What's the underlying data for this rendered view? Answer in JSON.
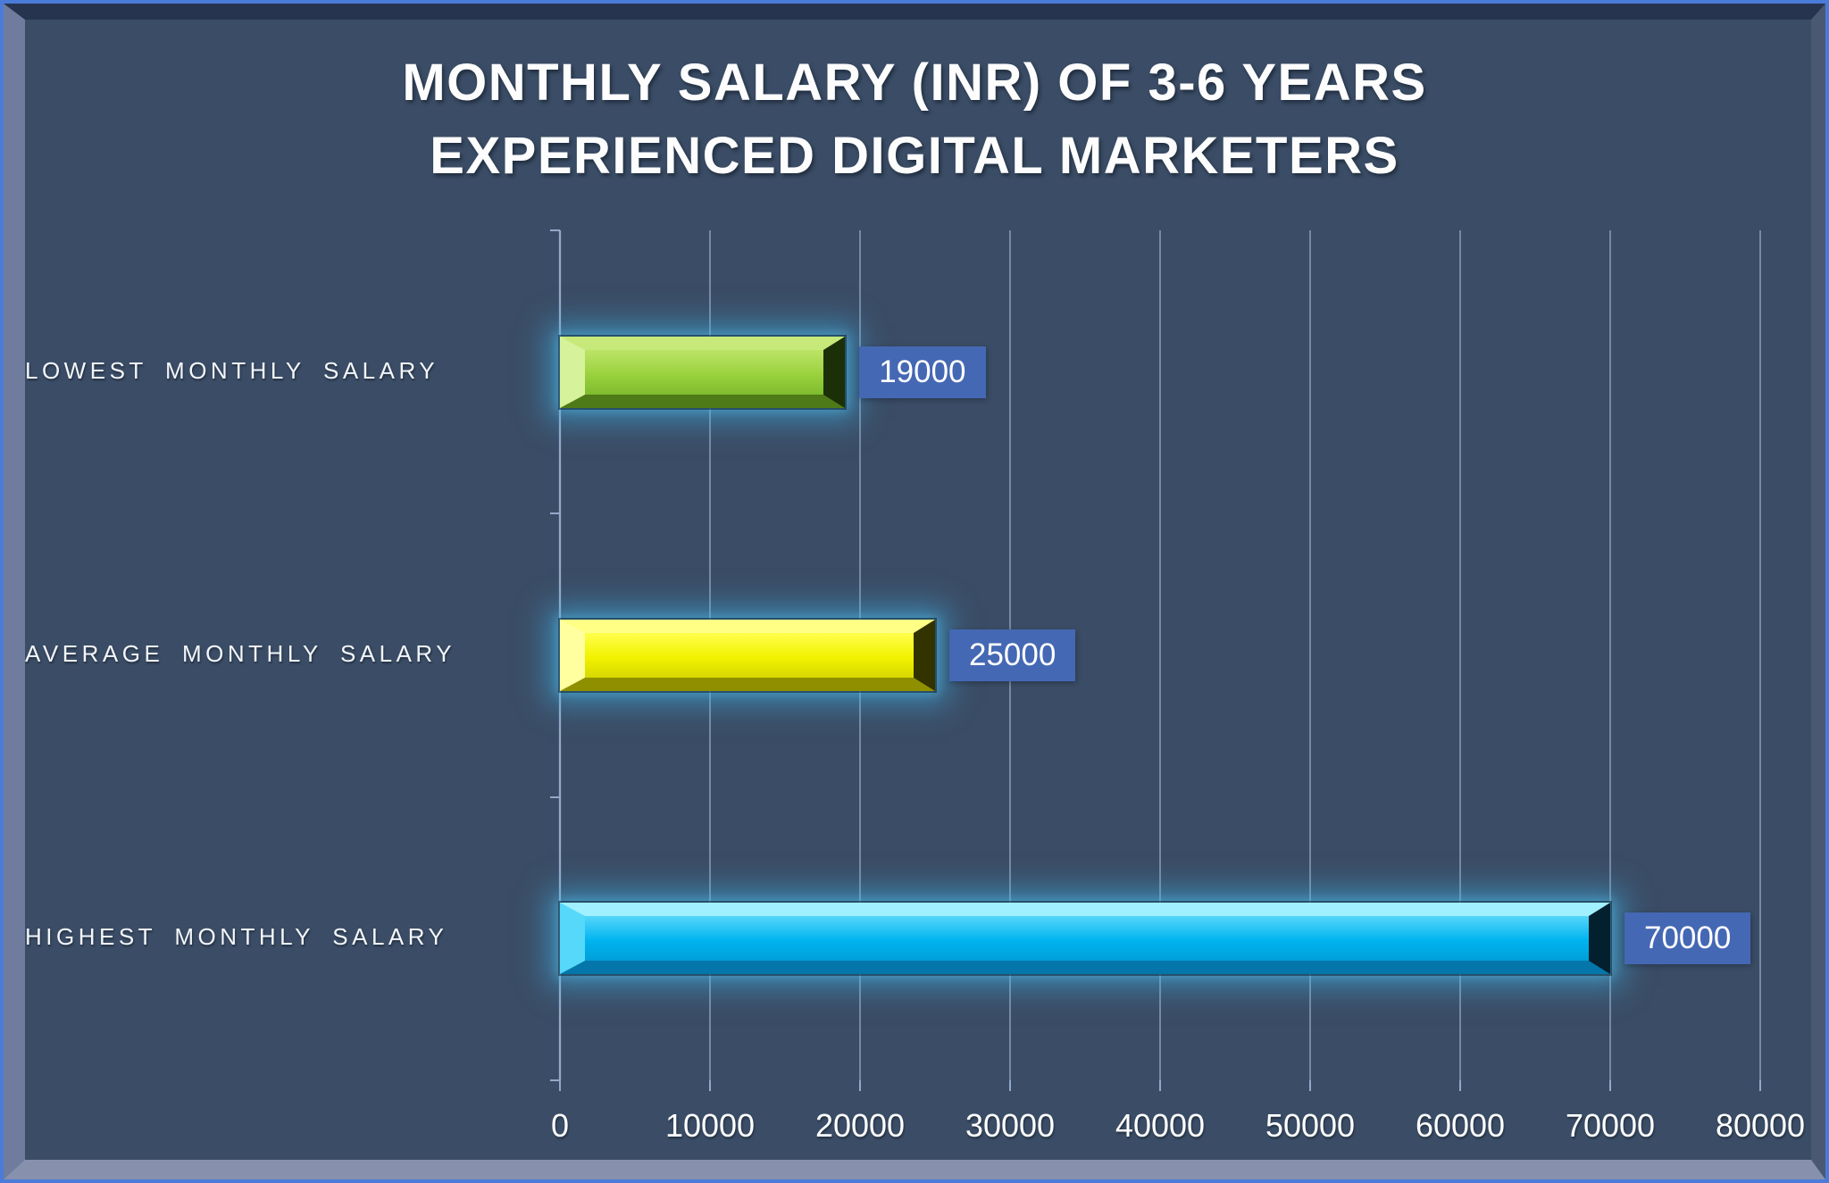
{
  "page": {
    "background_color": "#3b4d66",
    "frame_border_color": "#4a7bd9",
    "axis_color": "#93a9c9",
    "gridline_color": "rgba(158,175,200,0.62)"
  },
  "chart_data": {
    "type": "bar",
    "orientation": "horizontal",
    "title": "MONTHLY SALARY (INR) OF 3-6 YEARS EXPERIENCED DIGITAL MARKETERS",
    "categories": [
      "LOWEST MONTHLY SALARY",
      "AVERAGE MONTHLY SALARY",
      "HIGHEST MONTHLY SALARY"
    ],
    "values": [
      19000,
      25000,
      70000
    ],
    "data_labels": [
      "19000",
      "25000",
      "70000"
    ],
    "xlabel": "",
    "ylabel": "",
    "xlim": [
      0,
      80000
    ],
    "x_ticks": [
      0,
      10000,
      20000,
      30000,
      40000,
      50000,
      60000,
      70000,
      80000
    ],
    "x_tick_labels": [
      "0",
      "10000",
      "20000",
      "30000",
      "40000",
      "50000",
      "60000",
      "70000",
      "80000"
    ],
    "grid": true,
    "legend": false,
    "data_label_box_color": "#4568b4",
    "data_label_text_color": "#ffffff",
    "glow_color": "rgba(62,178,232,0.55)",
    "bar_styles": [
      {
        "name": "yellow-green",
        "face_light": "#bce468",
        "face_mid": "#9ad23e",
        "face_dark": "#7fbc2e",
        "bevel_top": "#c6e97a",
        "bevel_bottom": "#4e7a18",
        "bevel_left": "#d6f29a",
        "bevel_right": "#1c3007"
      },
      {
        "name": "yellow",
        "face_light": "#ffff4d",
        "face_mid": "#f2f200",
        "face_dark": "#d8d800",
        "bevel_top": "#ffff85",
        "bevel_bottom": "#8f8f00",
        "bevel_left": "#ffffa0",
        "bevel_right": "#333300"
      },
      {
        "name": "cyan",
        "face_light": "#55d6fa",
        "face_mid": "#00b4ef",
        "face_dark": "#009fd9",
        "bevel_top": "#a0f0ff",
        "bevel_bottom": "#0576aa",
        "bevel_left": "#55d8fa",
        "bevel_right": "#03202f"
      }
    ]
  }
}
